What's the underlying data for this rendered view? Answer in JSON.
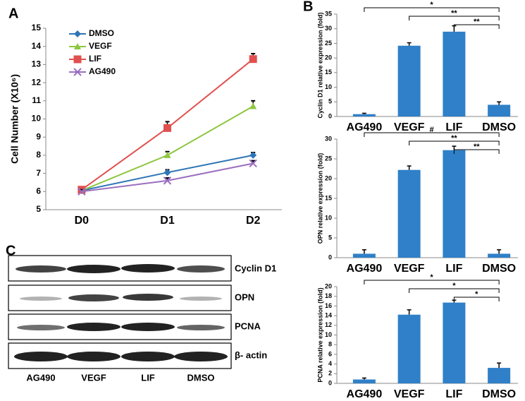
{
  "chart_data": [
    {
      "type": "line",
      "panel_label": "A",
      "ylabel": "Cell Number (X10⁶)",
      "categories": [
        "D0",
        "D1",
        "D2"
      ],
      "ylim": [
        5,
        15
      ],
      "yticks": [
        5,
        6,
        7,
        8,
        9,
        10,
        11,
        12,
        13,
        14,
        15
      ],
      "series": [
        {
          "name": "DMSO",
          "color": "#2e75b6",
          "marker": "diamond",
          "values": [
            6.05,
            7.05,
            8.0
          ],
          "errors": [
            0.1,
            0.15,
            0.15
          ]
        },
        {
          "name": "VEGF",
          "color": "#8dc63f",
          "marker": "triangle",
          "values": [
            6.05,
            8.0,
            10.7
          ],
          "errors": [
            0.1,
            0.2,
            0.3
          ]
        },
        {
          "name": "LIF",
          "color": "#e0504f",
          "marker": "square",
          "values": [
            6.1,
            9.5,
            13.3
          ],
          "errors": [
            0.1,
            0.35,
            0.3
          ]
        },
        {
          "name": "AG490",
          "color": "#9b6fbf",
          "marker": "x",
          "values": [
            6.0,
            6.6,
            7.55
          ],
          "errors": [
            0.1,
            0.15,
            0.15
          ]
        }
      ]
    },
    {
      "type": "bar",
      "panel_label": "B",
      "ylabel": "Cyclin D1 relative expression (fold)",
      "color": "#2f80c8",
      "categories": [
        "AG490",
        "VEGF",
        "LIF",
        "DMSO"
      ],
      "values": [
        0.8,
        24.2,
        29.0,
        4.0
      ],
      "errors": [
        0.3,
        1.0,
        2.0,
        1.0
      ],
      "ylim": [
        0,
        35
      ],
      "yticks": [
        0,
        5,
        10,
        15,
        20,
        25,
        30,
        35
      ],
      "annotations": [
        "*",
        "**",
        "**"
      ]
    },
    {
      "type": "bar",
      "ylabel": "OPN relative expression (fold)",
      "color": "#2f80c8",
      "categories": [
        "AG490",
        "VEGF",
        "LIF",
        "DMSO"
      ],
      "values": [
        1.0,
        22.2,
        27.2,
        1.0
      ],
      "errors": [
        1.0,
        1.0,
        1.0,
        1.0
      ],
      "ylim": [
        0,
        30
      ],
      "yticks": [
        0,
        5,
        10,
        15,
        20,
        25,
        30
      ],
      "annotations": [
        "#",
        "**",
        "**"
      ]
    },
    {
      "type": "bar",
      "ylabel": "PCNA relative expression (fold)",
      "color": "#2f80c8",
      "categories": [
        "AG490",
        "VEGF",
        "LIF",
        "DMSO"
      ],
      "values": [
        0.8,
        14.2,
        16.7,
        3.2
      ],
      "errors": [
        0.3,
        1.0,
        0.5,
        1.0
      ],
      "ylim": [
        0,
        20
      ],
      "yticks": [
        0,
        2,
        4,
        6,
        8,
        10,
        12,
        14,
        16,
        18,
        20
      ],
      "annotations": [
        "*",
        "*",
        "*"
      ]
    }
  ],
  "blot": {
    "panel_label": "C",
    "bands": [
      "Cyclin D1",
      "OPN",
      "PCNA",
      "β- actin"
    ],
    "lanes": [
      "AG490",
      "VEGF",
      "LIF",
      "DMSO"
    ]
  }
}
